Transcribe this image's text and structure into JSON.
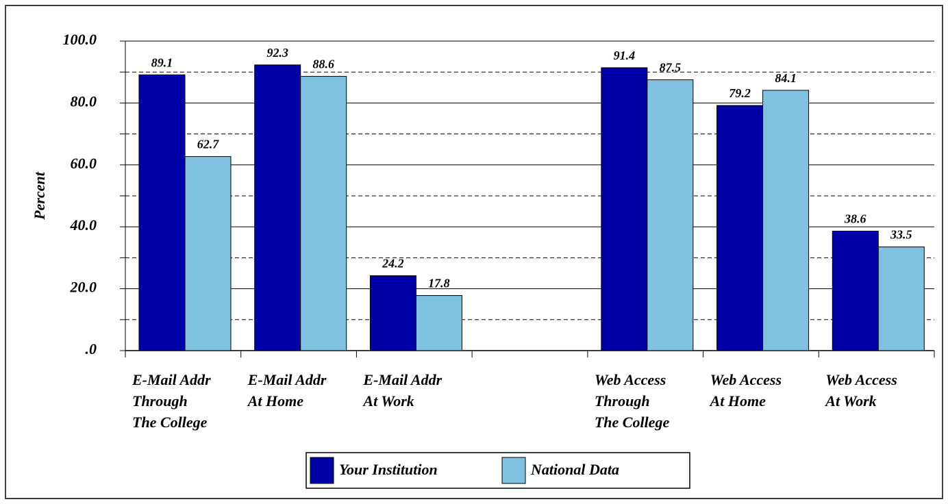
{
  "chart_data": {
    "type": "bar",
    "categories": [
      [
        "E-Mail Addr",
        "Through",
        "The College"
      ],
      [
        "E-Mail Addr",
        "At Home"
      ],
      [
        "E-Mail Addr",
        "At Work"
      ],
      null,
      [
        "Web Access",
        "Through",
        "The College"
      ],
      [
        "Web Access",
        "At Home"
      ],
      [
        "Web Access",
        "At Work"
      ]
    ],
    "series": [
      {
        "name": "Your Institution",
        "color": "#0000a8",
        "values": [
          89.1,
          92.3,
          24.2,
          null,
          91.4,
          79.2,
          38.6
        ]
      },
      {
        "name": "National Data",
        "color": "#80c0e0",
        "values": [
          62.7,
          88.6,
          17.8,
          null,
          87.5,
          84.1,
          33.5
        ]
      }
    ],
    "ylabel": "Percent",
    "ylim": [
      0,
      100
    ],
    "yticks": [
      {
        "value": 0,
        "label": ".0"
      },
      {
        "value": 20,
        "label": "20.0"
      },
      {
        "value": 40,
        "label": "40.0"
      },
      {
        "value": 60,
        "label": "60.0"
      },
      {
        "value": 80,
        "label": "80.0"
      },
      {
        "value": 100,
        "label": "100.0"
      }
    ],
    "yticks_minor": [
      10,
      30,
      50,
      70,
      90
    ],
    "grid": true,
    "legend": "bottom"
  }
}
